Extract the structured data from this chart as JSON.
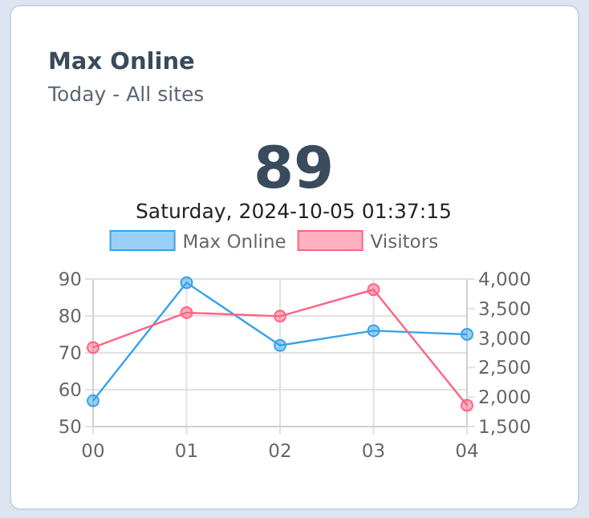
{
  "chart_data": {
    "type": "line",
    "title": "Max Online",
    "subtitle": "Today - All sites",
    "annotations": [
      "89",
      "Saturday, 2024-10-05 01:37:15"
    ],
    "categories": [
      "00",
      "01",
      "02",
      "03",
      "04"
    ],
    "series": [
      {
        "name": "Max Online",
        "color": "#36a2eb",
        "values": [
          57,
          89,
          72,
          76,
          75
        ]
      },
      {
        "name": "Visitors",
        "color": "#ff6384",
        "axis": "y2",
        "values": [
          2840,
          3430,
          3370,
          3820,
          1860
        ]
      }
    ],
    "ylim": [
      50,
      90
    ],
    "yticks": [
      50,
      60,
      70,
      80,
      90
    ],
    "y2lim": [
      1500,
      4000
    ],
    "y2ticks": [
      {
        "value": 1500,
        "label": "1,500"
      },
      {
        "value": 2000,
        "label": "2,000"
      },
      {
        "value": 2500,
        "label": "2,500"
      },
      {
        "value": 3000,
        "label": "3,000"
      },
      {
        "value": 3500,
        "label": "3,500"
      },
      {
        "value": 4000,
        "label": "4,000"
      }
    ],
    "grid": true,
    "legend": "top",
    "marker": "circle",
    "line_style": "solid"
  }
}
